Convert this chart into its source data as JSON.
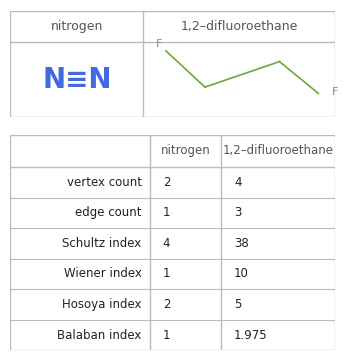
{
  "col1_header": "nitrogen",
  "col2_header": "1,2–difluoroethane",
  "rows": [
    [
      "vertex count",
      "2",
      "4"
    ],
    [
      "edge count",
      "1",
      "3"
    ],
    [
      "Schultz index",
      "4",
      "38"
    ],
    [
      "Wiener index",
      "1",
      "10"
    ],
    [
      "Hosoya index",
      "2",
      "5"
    ],
    [
      "Balaban index",
      "1",
      "1.975"
    ]
  ],
  "molecule1_color": "#4169e1",
  "molecule2_color": "#6aaa3a",
  "table_line_color": "#bbbbbb",
  "header_text_color": "#555555",
  "cell_text_color": "#222222",
  "background_color": "#ffffff"
}
